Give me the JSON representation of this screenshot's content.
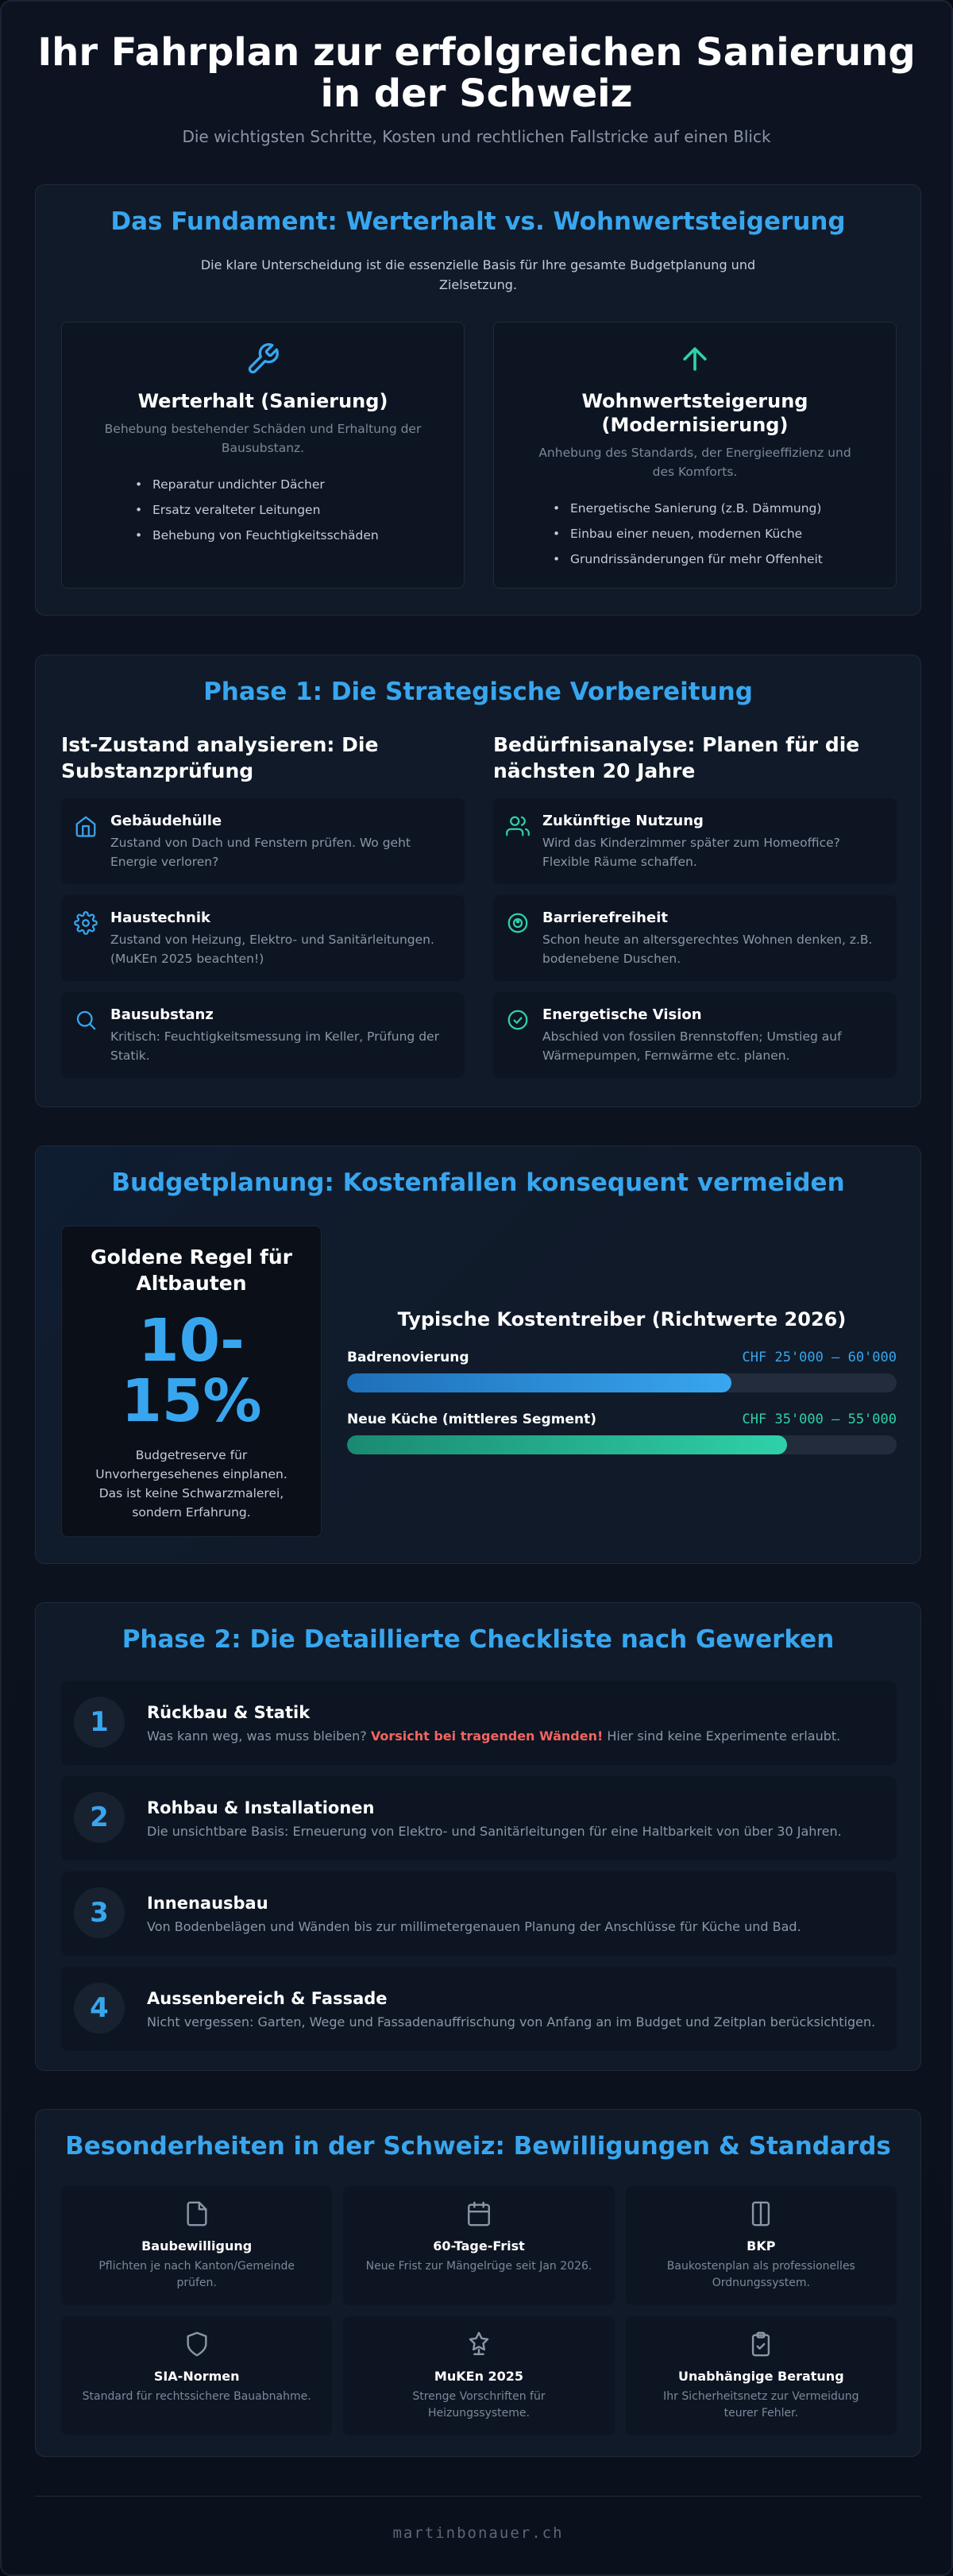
{
  "header": {
    "title_line1": "Ihr Fahrplan zur erfolgreichen Sanierung",
    "title_line2": "in der Schweiz",
    "subtitle": "Die wichtigsten Schritte, Kosten und rechtlichen Fallstricke auf einen Blick"
  },
  "fundament": {
    "title": "Das Fundament: Werterhalt vs. Wohnwertsteigerung",
    "intro": "Die klare Unterscheidung ist die essenzielle Basis für Ihre gesamte Budgetplanung und Zielsetzung.",
    "cards": [
      {
        "icon": "wrench-icon",
        "title": "Werterhalt (Sanierung)",
        "subtitle": "Behebung bestehender Schäden und Erhaltung der Bausubstanz.",
        "items": [
          "Reparatur undichter Dächer",
          "Ersatz veralteter Leitungen",
          "Behebung von Feuchtigkeitsschäden"
        ]
      },
      {
        "icon": "arrow-up-icon",
        "title_line1": "Wohnwertsteigerung",
        "title_line2": "(Modernisierung)",
        "subtitle": "Anhebung des Standards, der Energieeffizienz und des Komforts.",
        "items": [
          "Energetische Sanierung (z.B. Dämmung)",
          "Einbau einer neuen, modernen Küche",
          "Grundrissänderungen für mehr Offenheit"
        ]
      }
    ]
  },
  "phase1": {
    "title": "Phase 1: Die Strategische Vorbereitung",
    "left": {
      "heading": "Ist-Zustand analysieren: Die Substanzprüfung",
      "items": [
        {
          "icon": "house-icon",
          "title": "Gebäudehülle",
          "text": "Zustand von Dach und Fenstern prüfen. Wo geht Energie verloren?"
        },
        {
          "icon": "gear-icon",
          "title": "Haustechnik",
          "text": "Zustand von Heizung, Elektro- und Sanitärleitungen. (MuKEn 2025 beachten!)"
        },
        {
          "icon": "search-icon",
          "title": "Bausubstanz",
          "text": "Kritisch: Feuchtigkeitsmessung im Keller, Prüfung der Statik."
        }
      ]
    },
    "right": {
      "heading": "Bedürfnisanalyse: Planen für die nächsten 20 Jahre",
      "items": [
        {
          "icon": "users-icon",
          "title": "Zukünftige Nutzung",
          "text": "Wird das Kinderzimmer später zum Homeoffice? Flexible Räume schaffen."
        },
        {
          "icon": "accessibility-icon",
          "title": "Barrierefreiheit",
          "text": "Schon heute an altersgerechtes Wohnen denken, z.B. bodenebene Duschen."
        },
        {
          "icon": "check-circle-icon",
          "title": "Energetische Vision",
          "text": "Abschied von fossilen Brennstoffen; Umstieg auf Wärmepumpen, Fernwärme etc. planen."
        }
      ]
    }
  },
  "budget": {
    "title": "Budgetplanung: Kostenfallen konsequent vermeiden",
    "golden": {
      "heading": "Goldene Regel für Altbauten",
      "value_line1": "10-",
      "value_line2": "15%",
      "text": "Budgetreserve für Unvorhergesehenes einplanen. Das ist keine Schwarzmalerei, sondern Erfahrung."
    },
    "drivers_title": "Typische Kostentreiber (Richtwerte 2026)",
    "drivers": [
      {
        "name": "Badrenovierung",
        "range": "CHF 25'000 – 60'000",
        "fill_fraction": 0.7,
        "color": "#38a6ef"
      },
      {
        "name": "Neue Küche (mittleres Segment)",
        "range": "CHF 35'000 – 55'000",
        "fill_fraction": 0.8,
        "color": "#2fd1a9"
      }
    ]
  },
  "phase2": {
    "title": "Phase 2: Die Detaillierte Checkliste nach Gewerken",
    "steps": [
      {
        "num": "1",
        "title": "Rückbau & Statik",
        "text_before": "Was kann weg, was muss bleiben?",
        "warning": "Vorsicht bei tragenden Wänden!",
        "text_after": "Hier sind keine Experimente erlaubt."
      },
      {
        "num": "2",
        "title": "Rohbau & Installationen",
        "text": "Die unsichtbare Basis: Erneuerung von Elektro- und Sanitärleitungen für eine Haltbarkeit von über 30 Jahren."
      },
      {
        "num": "3",
        "title": "Innenausbau",
        "text": "Von Bodenbelägen und Wänden bis zur millimetergenauen Planung der Anschlüsse für Küche und Bad."
      },
      {
        "num": "4",
        "title": "Aussenbereich & Fassade",
        "text": "Nicht vergessen: Garten, Wege und Fassadenauffrischung von Anfang an im Budget und Zeitplan berücksichtigen."
      }
    ]
  },
  "swiss": {
    "title": "Besonderheiten in der Schweiz: Bewilligungen & Standards",
    "tiles": [
      {
        "icon": "document-icon",
        "title": "Baubewilligung",
        "text": "Pflichten je nach Kanton/Gemeinde prüfen."
      },
      {
        "icon": "calendar-icon",
        "title": "60-Tage-Frist",
        "text": "Neue Frist zur Mängelrüge seit Jan 2026."
      },
      {
        "icon": "book-icon",
        "title": "BKP",
        "text": "Baukostenplan als professionelles Ordnungssystem."
      },
      {
        "icon": "shield-icon",
        "title": "SIA-Normen",
        "text": "Standard für rechtssichere Bauabnahme."
      },
      {
        "icon": "award-icon",
        "title": "MuKEn 2025",
        "text": "Strenge Vorschriften für Heizungssysteme."
      },
      {
        "icon": "clipboard-check-icon",
        "title": "Unabhängige Beratung",
        "text": "Ihr Sicherheitsnetz zur Vermeidung teurer Fehler."
      }
    ]
  },
  "footer": {
    "text": "martinbonauer.ch"
  },
  "colors": {
    "accent": "#38a6ef",
    "green": "#2fd1a9",
    "warning": "#f4645f"
  }
}
